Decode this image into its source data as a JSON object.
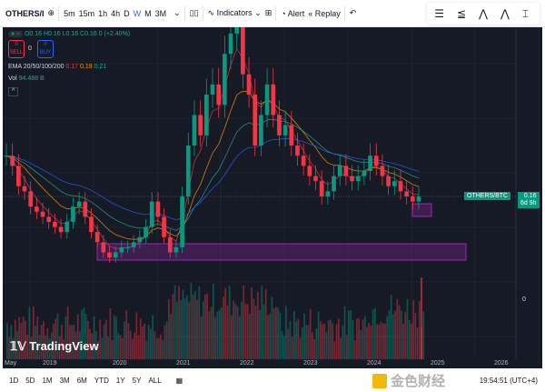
{
  "toolbar": {
    "symbol": "OTHERS/I",
    "intervals": [
      "5m",
      "15m",
      "1h",
      "4h",
      "D",
      "W",
      "M",
      "3M"
    ],
    "active_interval": "W",
    "indicators": "Indicators",
    "alert": "Alert",
    "replay": "Replay"
  },
  "legend": {
    "ohlc": "O0.16 H0.16 L0.16 C0.16 0 (+2.40%)",
    "sell_price": "0",
    "sell": "SELL",
    "spread": "0",
    "buy_price": "0",
    "buy": "BUY",
    "ema_label": "EMA 20/50/100/200",
    "ema_values": [
      "0.17",
      "0.19",
      "0.21"
    ],
    "vol_label": "Vol",
    "vol_value": "94.488 B"
  },
  "price_label": {
    "symbol": "OTHERS/BTC",
    "price": "0.16",
    "countdown": "6d 9h"
  },
  "volume_axis_label": "0",
  "time_axis": [
    "May",
    "2019",
    "2020",
    "2021",
    "2022",
    "2023",
    "2024",
    "2025",
    "2026"
  ],
  "ranges": [
    "1D",
    "5D",
    "1M",
    "3M",
    "6M",
    "YTD",
    "1Y",
    "5Y",
    "ALL"
  ],
  "clock": "19:54:51 (UTC+4)",
  "logo": "TradingView",
  "watermark": "金色财经",
  "colors": {
    "up": "#089981",
    "down": "#f23645",
    "ema20": "#f23645",
    "ema50": "#ff9800",
    "ema100": "#26a69a",
    "ema200": "#2962ff",
    "zone": "#9c27b0",
    "background": "#161a25"
  },
  "chart_data": {
    "type": "candlestick",
    "x_start": "2018-05",
    "interval": "month",
    "current_price": 0.16,
    "closes": [
      0.2,
      0.19,
      0.17,
      0.165,
      0.15,
      0.145,
      0.14,
      0.135,
      0.13,
      0.125,
      0.135,
      0.15,
      0.155,
      0.14,
      0.125,
      0.115,
      0.105,
      0.1,
      0.105,
      0.11,
      0.11,
      0.115,
      0.12,
      0.13,
      0.155,
      0.14,
      0.12,
      0.105,
      0.11,
      0.16,
      0.21,
      0.24,
      0.22,
      0.26,
      0.27,
      0.25,
      0.3,
      0.32,
      0.33,
      0.28,
      0.26,
      0.21,
      0.24,
      0.27,
      0.24,
      0.22,
      0.23,
      0.21,
      0.2,
      0.19,
      0.18,
      0.175,
      0.16,
      0.165,
      0.18,
      0.19,
      0.18,
      0.175,
      0.18,
      0.185,
      0.2,
      0.19,
      0.18,
      0.17,
      0.175,
      0.165,
      0.16,
      0.155,
      0.16
    ]
  }
}
